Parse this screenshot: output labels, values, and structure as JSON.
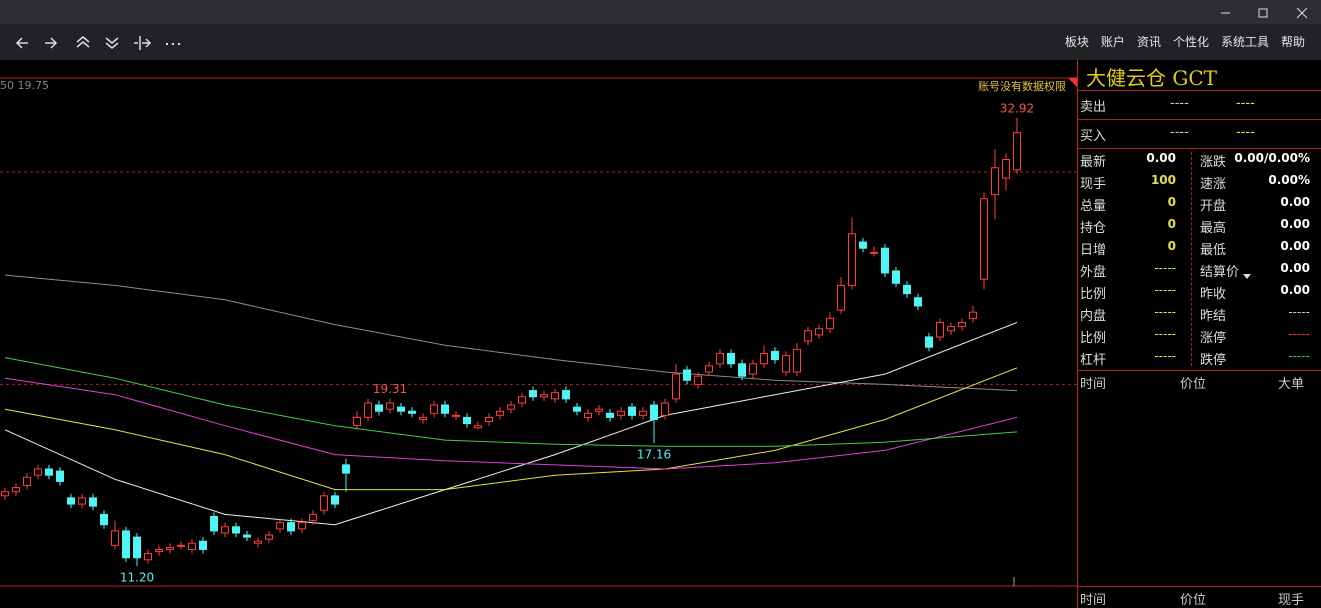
{
  "window": {
    "menu": [
      "板块",
      "账户",
      "资讯",
      "个性化",
      "系统工具",
      "帮助"
    ]
  },
  "chart": {
    "type": "candlestick",
    "corner_label": "50 19.75",
    "notice": "账号没有数据权限",
    "ylim": [
      10.23,
      34.85
    ],
    "up_color": "#ff3b3b",
    "down_color": "#4ff5f5",
    "open": [
      14.6,
      14.8,
      15.1,
      15.6,
      15.9,
      15.8,
      14.5,
      14.2,
      14.5,
      13.7,
      12.2,
      12.9,
      12.6,
      11.5,
      11.9,
      12.0,
      12.2,
      12.0,
      12.4,
      13.6,
      12.8,
      13.1,
      12.7,
      12.3,
      12.5,
      13.0,
      13.3,
      13.0,
      13.4,
      13.9,
      14.6,
      16.1,
      18.0,
      18.4,
      19.0,
      18.8,
      18.9,
      18.7,
      18.3,
      18.6,
      19.0,
      18.5,
      18.4,
      17.9,
      18.2,
      18.5,
      18.8,
      19.1,
      19.7,
      19.4,
      19.3,
      19.7,
      18.9,
      18.4,
      18.7,
      18.6,
      18.5,
      18.9,
      18.5,
      19.0,
      18.5,
      19.3,
      20.7,
      20.0,
      20.6,
      21.0,
      21.5,
      21.0,
      20.5,
      21.0,
      21.6,
      20.6,
      20.6,
      22.1,
      22.4,
      22.7,
      23.6,
      24.8,
      26.9,
      26.4,
      26.6,
      25.5,
      24.8,
      24.2,
      22.3,
      22.3,
      22.6,
      22.8,
      23.2,
      25.1,
      29.2,
      30.0,
      30.4
    ],
    "high": [
      15.0,
      15.2,
      15.7,
      16.1,
      16.1,
      16.0,
      14.7,
      14.7,
      14.7,
      13.9,
      13.4,
      13.1,
      12.8,
      12.0,
      12.2,
      12.3,
      12.4,
      12.5,
      12.6,
      13.8,
      13.3,
      13.3,
      12.9,
      12.6,
      12.9,
      13.5,
      13.5,
      13.5,
      13.9,
      14.8,
      14.8,
      16.4,
      18.7,
      19.3,
      19.2,
      19.31,
      19.1,
      18.9,
      18.6,
      19.2,
      19.2,
      18.7,
      18.6,
      18.2,
      18.6,
      18.9,
      19.2,
      19.6,
      19.9,
      19.7,
      19.8,
      19.9,
      19.1,
      18.8,
      19.0,
      18.8,
      18.9,
      19.1,
      18.9,
      19.2,
      19.3,
      21.0,
      20.9,
      20.6,
      21.1,
      21.7,
      21.7,
      21.2,
      21.2,
      21.9,
      21.8,
      21.6,
      22.0,
      22.8,
      22.9,
      23.5,
      25.2,
      28.1,
      27.1,
      26.7,
      26.8,
      25.7,
      25.0,
      24.4,
      22.5,
      23.2,
      23.0,
      23.2,
      23.8,
      29.3,
      31.4,
      31.2,
      32.92
    ],
    "low": [
      14.4,
      14.6,
      14.9,
      15.4,
      15.4,
      15.1,
      14.0,
      14.0,
      13.9,
      13.0,
      12.0,
      11.4,
      11.2,
      11.3,
      11.7,
      11.8,
      12.0,
      11.8,
      11.8,
      12.7,
      12.6,
      12.6,
      12.4,
      12.1,
      12.3,
      12.8,
      12.7,
      12.8,
      13.2,
      13.7,
      14.0,
      14.8,
      17.8,
      18.2,
      18.5,
      18.6,
      18.5,
      18.4,
      18.1,
      18.4,
      18.4,
      18.3,
      17.9,
      17.8,
      18.0,
      18.3,
      18.6,
      18.9,
      19.2,
      19.2,
      19.1,
      19.1,
      18.5,
      18.2,
      18.5,
      18.2,
      18.3,
      18.3,
      18.3,
      17.16,
      18.3,
      19.1,
      20.0,
      19.8,
      20.4,
      20.8,
      20.8,
      20.2,
      20.3,
      20.8,
      21.0,
      20.4,
      20.4,
      21.9,
      22.2,
      22.5,
      23.4,
      24.6,
      26.4,
      26.2,
      25.2,
      24.7,
      24.2,
      23.6,
      21.6,
      22.1,
      22.4,
      22.6,
      23.0,
      24.6,
      28.0,
      29.4,
      30.2
    ],
    "close": [
      14.8,
      15.0,
      15.5,
      15.9,
      15.6,
      15.3,
      14.2,
      14.5,
      14.1,
      13.2,
      12.9,
      11.6,
      11.6,
      11.8,
      12.0,
      12.1,
      12.2,
      12.3,
      12.0,
      12.9,
      13.1,
      12.8,
      12.6,
      12.4,
      12.7,
      13.3,
      12.9,
      13.3,
      13.7,
      14.6,
      14.2,
      15.7,
      18.4,
      19.1,
      18.7,
      19.1,
      18.7,
      18.6,
      18.4,
      19.0,
      18.6,
      18.5,
      18.1,
      18.0,
      18.4,
      18.7,
      19.0,
      19.4,
      19.4,
      19.5,
      19.6,
      19.3,
      18.7,
      18.6,
      18.8,
      18.4,
      18.7,
      18.5,
      18.7,
      18.3,
      19.1,
      20.5,
      20.2,
      20.4,
      20.9,
      21.5,
      21.0,
      20.4,
      21.0,
      21.5,
      21.2,
      21.4,
      21.7,
      22.6,
      22.7,
      23.2,
      24.8,
      27.3,
      26.6,
      26.4,
      25.4,
      24.9,
      24.4,
      23.8,
      21.8,
      23.0,
      22.8,
      23.0,
      23.5,
      29.0,
      30.5,
      30.9,
      32.2
    ],
    "price_labels": [
      {
        "value": 32.92,
        "label": "32.92"
      },
      {
        "value": 19.31,
        "label": "19.31"
      },
      {
        "value": 17.16,
        "label": "17.16"
      },
      {
        "value": 11.2,
        "label": "11.20"
      }
    ],
    "ma_index": [
      0,
      10,
      20,
      30,
      40,
      50,
      60,
      70,
      80,
      92
    ],
    "ma_lines": [
      {
        "color": "#8c8c8c",
        "values": [
          25.3,
          24.8,
          24.1,
          22.9,
          21.9,
          21.2,
          20.6,
          20.2,
          20.0,
          19.7
        ]
      },
      {
        "color": "#f0f0f0",
        "values": [
          17.8,
          15.4,
          13.7,
          13.2,
          14.9,
          16.6,
          18.5,
          19.5,
          20.5,
          23.0
        ]
      },
      {
        "color": "#e6e04a",
        "values": [
          18.8,
          17.8,
          16.6,
          14.9,
          14.9,
          15.6,
          15.9,
          16.8,
          18.3,
          20.8
        ]
      },
      {
        "color": "#e040e0",
        "values": [
          20.3,
          19.5,
          18.0,
          16.6,
          16.3,
          16.1,
          15.9,
          16.2,
          16.8,
          18.4
        ]
      },
      {
        "color": "#3fd23f",
        "values": [
          21.3,
          20.3,
          19.0,
          18.0,
          17.3,
          17.1,
          17.0,
          17.0,
          17.2,
          17.7
        ]
      }
    ],
    "ref_lines": [
      30.3,
      20.0
    ]
  },
  "panel": {
    "title": "大健云仓 GCT",
    "orders": [
      [
        "卖出",
        "----",
        "----"
      ],
      [
        "买入",
        "----",
        "----"
      ]
    ],
    "quote": [
      [
        "最新",
        "0.00",
        "涨跌",
        "0.00/0.00%"
      ],
      [
        "现手",
        "100",
        "速涨",
        "0.00%"
      ],
      [
        "总量",
        "0",
        "开盘",
        "0.00"
      ],
      [
        "持仓",
        "0",
        "最高",
        "0.00"
      ],
      [
        "日增",
        "0",
        "最低",
        "0.00"
      ],
      [
        "外盘",
        "-----",
        "结算价",
        "0.00"
      ],
      [
        "比例",
        "-----",
        "昨收",
        "0.00"
      ],
      [
        "内盘",
        "-----",
        "昨结",
        "-----"
      ],
      [
        "比例",
        "-----",
        "涨停",
        "-----"
      ],
      [
        "杠杆",
        "-----",
        "跌停",
        "-----"
      ]
    ],
    "ticks_header": [
      "时间",
      "价位",
      "大单"
    ],
    "trades_header": [
      "时间",
      "价位",
      "现手"
    ]
  }
}
